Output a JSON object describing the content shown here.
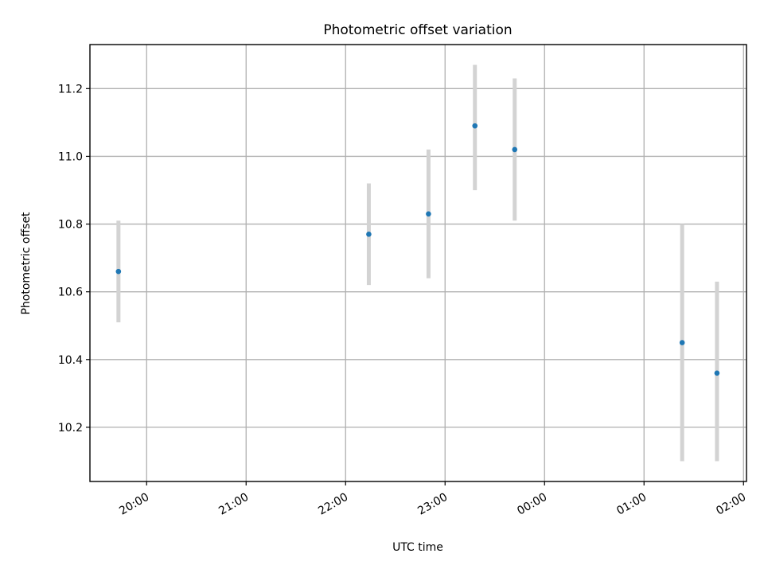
{
  "chart_data": {
    "type": "scatter",
    "title": "Photometric offset variation",
    "xlabel": "UTC time",
    "ylabel": "Photometric offset",
    "x_ticks": [
      "20:00",
      "21:00",
      "22:00",
      "23:00",
      "00:00",
      "01:00",
      "02:00"
    ],
    "y_ticks": [
      "10.2",
      "10.4",
      "10.6",
      "10.8",
      "11.0",
      "11.2"
    ],
    "x_tick_values_hours": [
      20,
      21,
      22,
      23,
      24,
      25,
      26
    ],
    "y_tick_values": [
      10.2,
      10.4,
      10.6,
      10.8,
      11.0,
      11.2
    ],
    "xlim_hours": [
      19.43,
      26.03
    ],
    "ylim": [
      10.04,
      11.33
    ],
    "grid": true,
    "series": [
      {
        "marker_color": "#1f77b4",
        "errorbar_color": "#d3d3d3",
        "points": [
          {
            "time": "19:43",
            "y": 10.66,
            "y_low": 10.51,
            "y_high": 10.81
          },
          {
            "time": "22:14",
            "y": 10.77,
            "y_low": 10.62,
            "y_high": 10.92
          },
          {
            "time": "22:50",
            "y": 10.83,
            "y_low": 10.64,
            "y_high": 11.02
          },
          {
            "time": "23:18",
            "y": 11.09,
            "y_low": 10.9,
            "y_high": 11.27
          },
          {
            "time": "23:42",
            "y": 11.02,
            "y_low": 10.81,
            "y_high": 11.23
          },
          {
            "time": "01:23",
            "y": 10.45,
            "y_low": 10.1,
            "y_high": 10.8
          },
          {
            "time": "01:44",
            "y": 10.36,
            "y_low": 10.1,
            "y_high": 10.63
          }
        ]
      }
    ]
  }
}
